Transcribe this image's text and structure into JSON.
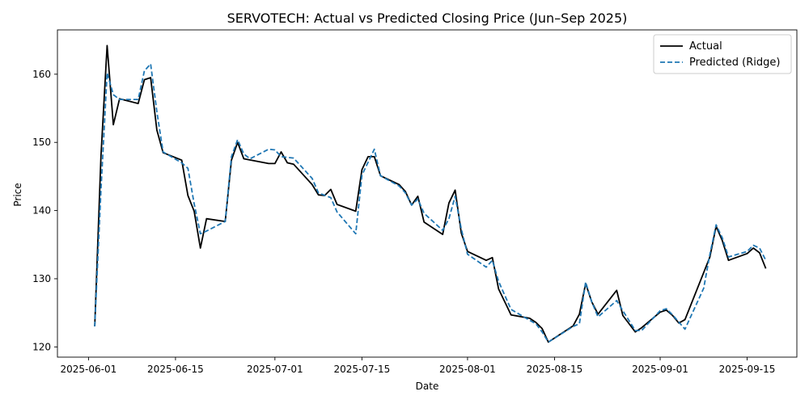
{
  "chart_data": {
    "type": "line",
    "title": "SERVOTECH: Actual vs Predicted Closing Price (Jun–Sep 2025)",
    "xlabel": "Date",
    "ylabel": "Price",
    "xlim": [
      "2025-05-27",
      "2025-09-23"
    ],
    "ylim": [
      118.5,
      166.5
    ],
    "x_ticks": [
      "2025-06-01",
      "2025-06-15",
      "2025-07-01",
      "2025-07-15",
      "2025-08-01",
      "2025-08-15",
      "2025-09-01",
      "2025-09-15"
    ],
    "y_ticks": [
      120,
      130,
      140,
      150,
      160
    ],
    "grid": false,
    "legend_position": "top-right",
    "series": [
      {
        "name": "Actual",
        "color": "#000000",
        "style": "solid",
        "points": [
          [
            "2025-06-02",
            123.0
          ],
          [
            "2025-06-03",
            148.0
          ],
          [
            "2025-06-04",
            164.2
          ],
          [
            "2025-06-05",
            152.6
          ],
          [
            "2025-06-06",
            156.4
          ],
          [
            "2025-06-09",
            155.7
          ],
          [
            "2025-06-10",
            159.2
          ],
          [
            "2025-06-11",
            159.5
          ],
          [
            "2025-06-12",
            151.8
          ],
          [
            "2025-06-13",
            148.5
          ],
          [
            "2025-06-16",
            147.4
          ],
          [
            "2025-06-17",
            142.2
          ],
          [
            "2025-06-18",
            139.9
          ],
          [
            "2025-06-19",
            134.5
          ],
          [
            "2025-06-20",
            138.8
          ],
          [
            "2025-06-23",
            138.4
          ],
          [
            "2025-06-24",
            147.4
          ],
          [
            "2025-06-25",
            150.0
          ],
          [
            "2025-06-26",
            147.6
          ],
          [
            "2025-06-30",
            146.9
          ],
          [
            "2025-07-01",
            146.9
          ],
          [
            "2025-07-02",
            148.6
          ],
          [
            "2025-07-03",
            147.0
          ],
          [
            "2025-07-04",
            146.8
          ],
          [
            "2025-07-07",
            143.8
          ],
          [
            "2025-07-08",
            142.3
          ],
          [
            "2025-07-09",
            142.2
          ],
          [
            "2025-07-10",
            143.1
          ],
          [
            "2025-07-11",
            140.9
          ],
          [
            "2025-07-14",
            139.9
          ],
          [
            "2025-07-15",
            146.0
          ],
          [
            "2025-07-16",
            147.9
          ],
          [
            "2025-07-17",
            147.9
          ],
          [
            "2025-07-18",
            145.1
          ],
          [
            "2025-07-21",
            143.8
          ],
          [
            "2025-07-22",
            142.8
          ],
          [
            "2025-07-23",
            140.8
          ],
          [
            "2025-07-24",
            142.1
          ],
          [
            "2025-07-25",
            138.3
          ],
          [
            "2025-07-28",
            136.5
          ],
          [
            "2025-07-29",
            141.1
          ],
          [
            "2025-07-30",
            143.0
          ],
          [
            "2025-07-31",
            136.7
          ],
          [
            "2025-08-01",
            134.0
          ],
          [
            "2025-08-04",
            132.7
          ],
          [
            "2025-08-05",
            133.1
          ],
          [
            "2025-08-06",
            128.5
          ],
          [
            "2025-08-08",
            124.7
          ],
          [
            "2025-08-11",
            124.2
          ],
          [
            "2025-08-12",
            123.6
          ],
          [
            "2025-08-13",
            122.7
          ],
          [
            "2025-08-14",
            120.7
          ],
          [
            "2025-08-18",
            123.1
          ],
          [
            "2025-08-19",
            124.8
          ],
          [
            "2025-08-20",
            129.3
          ],
          [
            "2025-08-21",
            126.6
          ],
          [
            "2025-08-22",
            124.8
          ],
          [
            "2025-08-25",
            128.3
          ],
          [
            "2025-08-26",
            124.6
          ],
          [
            "2025-08-28",
            122.2
          ],
          [
            "2025-08-29",
            122.8
          ],
          [
            "2025-09-01",
            125.1
          ],
          [
            "2025-09-02",
            125.4
          ],
          [
            "2025-09-03",
            124.6
          ],
          [
            "2025-09-04",
            123.5
          ],
          [
            "2025-09-05",
            124.0
          ],
          [
            "2025-09-08",
            130.9
          ],
          [
            "2025-09-09",
            133.2
          ],
          [
            "2025-09-10",
            137.7
          ],
          [
            "2025-09-11",
            135.6
          ],
          [
            "2025-09-12",
            132.7
          ],
          [
            "2025-09-15",
            133.7
          ],
          [
            "2025-09-16",
            134.5
          ],
          [
            "2025-09-17",
            133.8
          ],
          [
            "2025-09-18",
            131.5
          ]
        ]
      },
      {
        "name": "Predicted (Ridge)",
        "color": "#1f77b4",
        "style": "dashed",
        "points": [
          [
            "2025-06-02",
            123.0
          ],
          [
            "2025-06-03",
            143.0
          ],
          [
            "2025-06-04",
            160.2
          ],
          [
            "2025-06-05",
            157.0
          ],
          [
            "2025-06-06",
            156.3
          ],
          [
            "2025-06-09",
            156.3
          ],
          [
            "2025-06-10",
            160.5
          ],
          [
            "2025-06-11",
            161.5
          ],
          [
            "2025-06-12",
            154.5
          ],
          [
            "2025-06-13",
            148.6
          ],
          [
            "2025-06-16",
            147.0
          ],
          [
            "2025-06-17",
            146.2
          ],
          [
            "2025-06-18",
            141.0
          ],
          [
            "2025-06-19",
            136.6
          ],
          [
            "2025-06-20",
            137.0
          ],
          [
            "2025-06-23",
            138.4
          ],
          [
            "2025-06-24",
            147.9
          ],
          [
            "2025-06-25",
            150.4
          ],
          [
            "2025-06-26",
            148.3
          ],
          [
            "2025-06-27",
            147.6
          ],
          [
            "2025-06-30",
            149.0
          ],
          [
            "2025-07-01",
            148.9
          ],
          [
            "2025-07-02",
            147.9
          ],
          [
            "2025-07-04",
            147.7
          ],
          [
            "2025-07-07",
            144.7
          ],
          [
            "2025-07-08",
            142.6
          ],
          [
            "2025-07-10",
            141.9
          ],
          [
            "2025-07-11",
            139.8
          ],
          [
            "2025-07-14",
            136.6
          ],
          [
            "2025-07-15",
            145.2
          ],
          [
            "2025-07-17",
            149.0
          ],
          [
            "2025-07-18",
            145.1
          ],
          [
            "2025-07-21",
            143.6
          ],
          [
            "2025-07-22",
            142.6
          ],
          [
            "2025-07-23",
            140.8
          ],
          [
            "2025-07-24",
            141.7
          ],
          [
            "2025-07-25",
            139.6
          ],
          [
            "2025-07-28",
            137.1
          ],
          [
            "2025-07-29",
            138.8
          ],
          [
            "2025-07-30",
            142.1
          ],
          [
            "2025-07-31",
            137.3
          ],
          [
            "2025-08-01",
            133.6
          ],
          [
            "2025-08-04",
            131.7
          ],
          [
            "2025-08-05",
            132.7
          ],
          [
            "2025-08-06",
            129.6
          ],
          [
            "2025-08-08",
            125.5
          ],
          [
            "2025-08-11",
            123.9
          ],
          [
            "2025-08-12",
            123.4
          ],
          [
            "2025-08-13",
            122.2
          ],
          [
            "2025-08-14",
            120.7
          ],
          [
            "2025-08-18",
            123.0
          ],
          [
            "2025-08-19",
            123.4
          ],
          [
            "2025-08-20",
            129.5
          ],
          [
            "2025-08-21",
            126.6
          ],
          [
            "2025-08-22",
            124.4
          ],
          [
            "2025-08-25",
            126.8
          ],
          [
            "2025-08-26",
            125.3
          ],
          [
            "2025-08-28",
            122.4
          ],
          [
            "2025-08-29",
            122.4
          ],
          [
            "2025-09-01",
            125.3
          ],
          [
            "2025-09-02",
            125.6
          ],
          [
            "2025-09-03",
            124.7
          ],
          [
            "2025-09-05",
            122.6
          ],
          [
            "2025-09-08",
            128.6
          ],
          [
            "2025-09-09",
            133.6
          ],
          [
            "2025-09-10",
            137.9
          ],
          [
            "2025-09-11",
            136.0
          ],
          [
            "2025-09-12",
            133.2
          ],
          [
            "2025-09-15",
            134.0
          ],
          [
            "2025-09-16",
            134.9
          ],
          [
            "2025-09-17",
            134.5
          ],
          [
            "2025-09-18",
            132.7
          ]
        ]
      }
    ]
  }
}
